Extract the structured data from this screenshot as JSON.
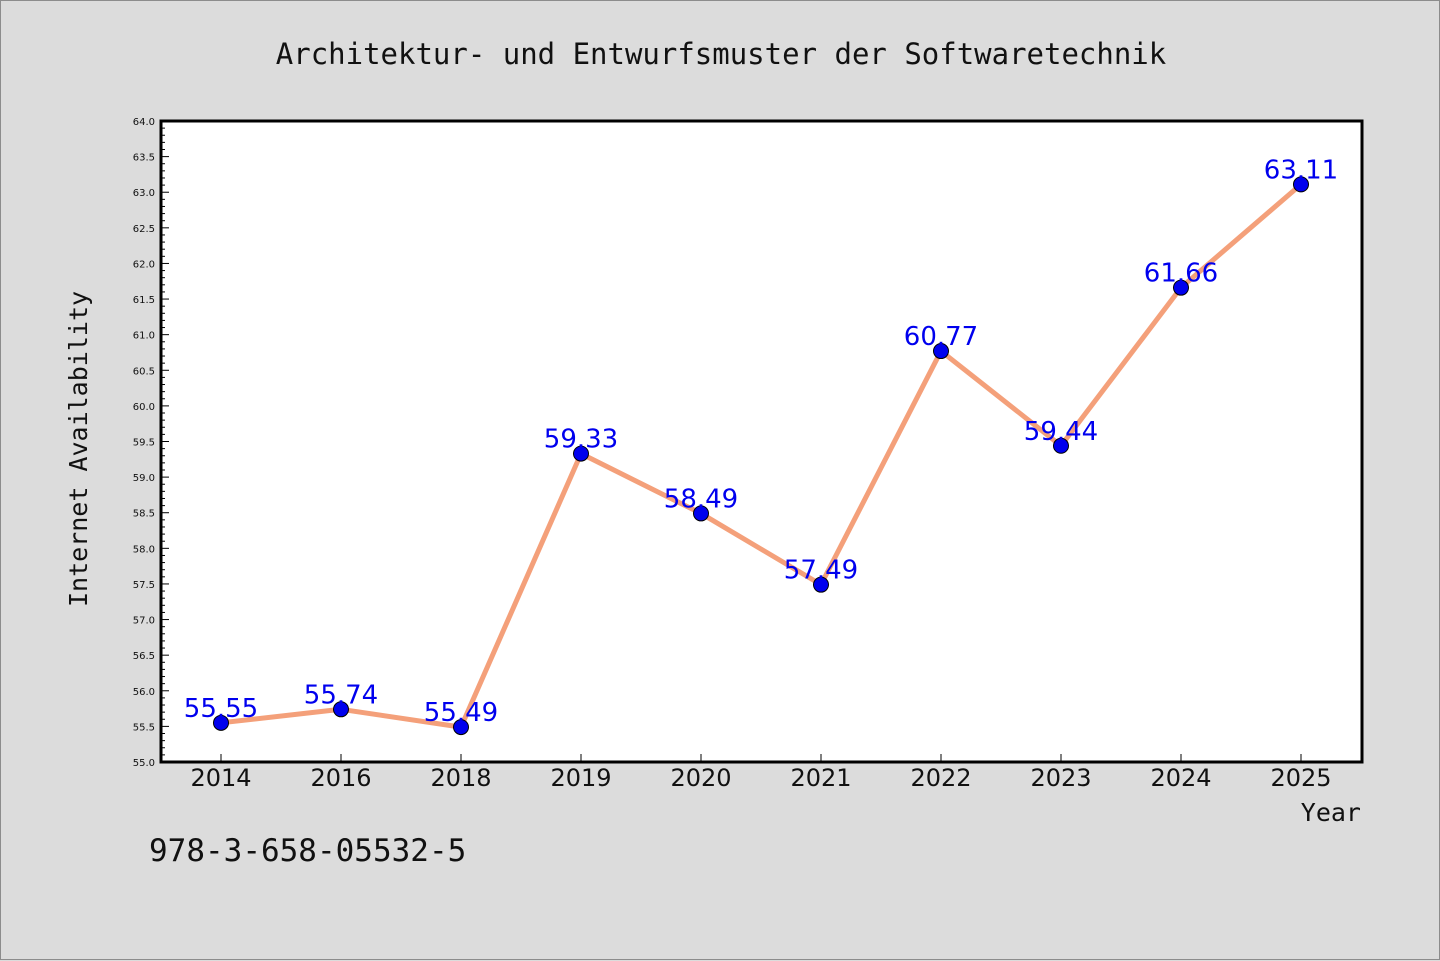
{
  "chart_data": {
    "type": "line",
    "title": "Architektur- und Entwurfsmuster der Softwaretechnik",
    "xlabel": "Year",
    "ylabel": "Internet Availability",
    "categories": [
      "2014",
      "2016",
      "2018",
      "2019",
      "2020",
      "2021",
      "2022",
      "2023",
      "2024",
      "2025"
    ],
    "series": [
      {
        "values": [
          55.55,
          55.74,
          55.49,
          59.33,
          58.49,
          57.49,
          60.77,
          59.44,
          61.66,
          63.11
        ],
        "labels": [
          "55.55",
          "55.74",
          "55.49",
          "59.33",
          "58.49",
          "57.49",
          "60.77",
          "59.44",
          "61.66",
          "63.11"
        ]
      }
    ],
    "ylim": [
      55.0,
      64.0
    ],
    "ytick_step": 0.5,
    "yticks": [
      "55.0",
      "55.5",
      "56.0",
      "56.5",
      "57.0",
      "57.5",
      "58.0",
      "58.5",
      "59.0",
      "59.5",
      "60.0",
      "60.5",
      "61.0",
      "61.5",
      "62.0",
      "62.5",
      "63.0",
      "63.5",
      "64.0"
    ],
    "grid": false,
    "legend": "none",
    "colors": {
      "line": "#f4a07a",
      "marker": "#0000ee",
      "label": "#0000ee",
      "background": "#dcdcdc",
      "plot_background": "#ffffff"
    }
  },
  "footer": {
    "isbn": "978-3-658-05532-5"
  }
}
